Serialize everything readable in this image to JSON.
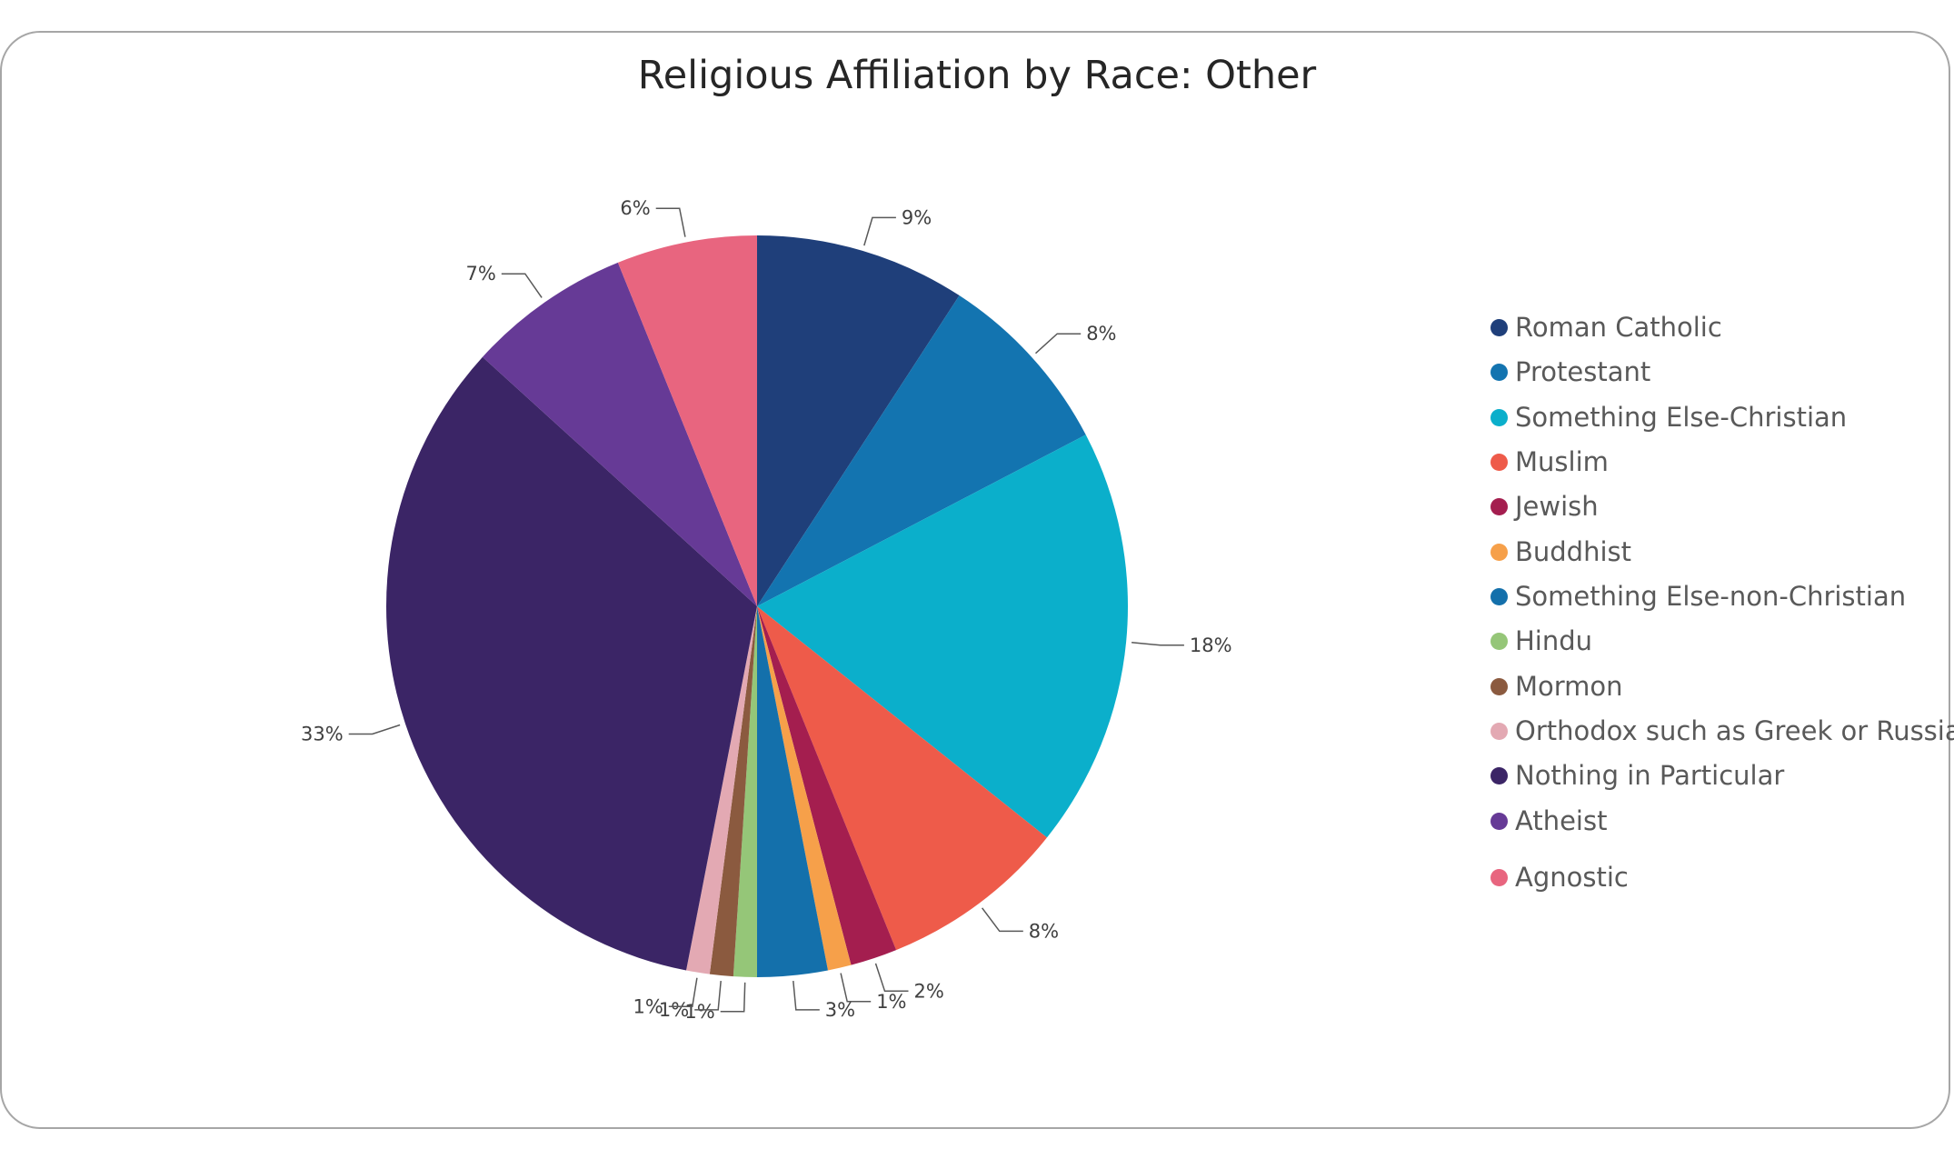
{
  "chart_data": {
    "type": "pie",
    "title": "Religious Affiliation by Race: Other",
    "legend_position": "right",
    "slices": [
      {
        "name": "Roman Catholic",
        "value": 9,
        "label": "9%",
        "color": "#1f3f7a"
      },
      {
        "name": "Protestant",
        "value": 8,
        "label": "8%",
        "color": "#1374b0"
      },
      {
        "name": "Something Else-Christian",
        "value": 18,
        "label": "18%",
        "color": "#0bafcb"
      },
      {
        "name": "Muslim",
        "value": 8,
        "label": "8%",
        "color": "#ee5b4a"
      },
      {
        "name": "Jewish",
        "value": 2,
        "label": "2%",
        "color": "#a41e4f"
      },
      {
        "name": "Buddhist",
        "value": 1,
        "label": "1%",
        "color": "#f6a04a"
      },
      {
        "name": "Something Else-non-Christian",
        "value": 3,
        "label": "3%",
        "color": "#1470ab"
      },
      {
        "name": "Hindu",
        "value": 1,
        "label": "1%",
        "color": "#95c678"
      },
      {
        "name": "Mormon",
        "value": 1,
        "label": "1%",
        "color": "#8b5a3f"
      },
      {
        "name": "Orthodox such as Greek or Russian",
        "value": 1,
        "label": "1%",
        "color": "#e3a9b3"
      },
      {
        "name": "Nothing in Particular",
        "value": 33,
        "label": "33%",
        "color": "#3b2566"
      },
      {
        "name": "Atheist",
        "value": 7,
        "label": "7%",
        "color": "#663a96"
      },
      {
        "name": "Agnostic",
        "value": 6,
        "label": "6%",
        "color": "#e8657f"
      }
    ]
  }
}
